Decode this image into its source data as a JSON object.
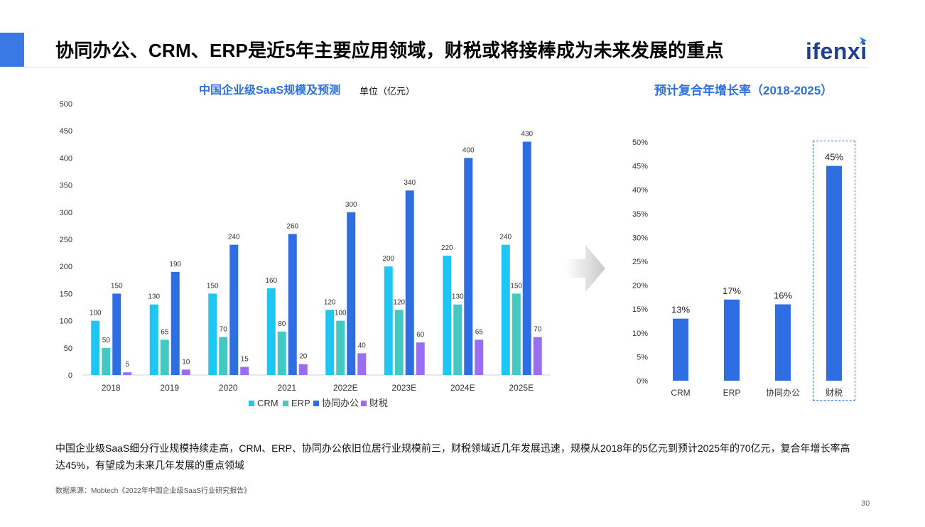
{
  "header": {
    "title": "协同办公、CRM、ERP是近5年主要应用领域，财税或将接棒成为未来发展的重点",
    "logo_text": "ifenxi"
  },
  "colors": {
    "accent": "#3a78e6",
    "title_blue": "#2e6fe0",
    "crm": "#1fc6f2",
    "erp": "#43c9c2",
    "office": "#2f6de3",
    "tax": "#9a6ef2"
  },
  "chart_data": [
    {
      "type": "bar",
      "title": "中国企业级SaaS规模及预测",
      "unit_label": "单位（亿元）",
      "categories": [
        "2018",
        "2019",
        "2020",
        "2021",
        "2022E",
        "2023E",
        "2024E",
        "2025E"
      ],
      "series": [
        {
          "name": "CRM",
          "values": [
            100,
            130,
            150,
            160,
            120,
            200,
            220,
            240
          ]
        },
        {
          "name": "ERP",
          "values": [
            50,
            65,
            70,
            80,
            100,
            120,
            130,
            150
          ]
        },
        {
          "name": "协同办公",
          "values": [
            150,
            190,
            240,
            260,
            300,
            340,
            400,
            430
          ]
        },
        {
          "name": "财税",
          "values": [
            5,
            10,
            15,
            20,
            40,
            60,
            65,
            70
          ]
        }
      ],
      "ylim": [
        0,
        500
      ],
      "yticks": [
        "0",
        "50",
        "100",
        "150",
        "200",
        "250",
        "300",
        "350",
        "400",
        "450",
        "500"
      ],
      "grid": false,
      "legend_position": "bottom"
    },
    {
      "type": "bar",
      "title": "预计复合年增长率（2018-2025）",
      "categories": [
        "CRM",
        "ERP",
        "协同办公",
        "财税"
      ],
      "values": [
        13,
        17,
        16,
        45
      ],
      "value_labels": [
        "13%",
        "17%",
        "16%",
        "45%"
      ],
      "ylim": [
        0,
        50
      ],
      "yticks": [
        "0%",
        "5%",
        "10%",
        "15%",
        "20%",
        "25%",
        "30%",
        "35%",
        "40%",
        "45%",
        "50%"
      ],
      "grid": false,
      "highlight": "财税"
    }
  ],
  "summary": "中国企业级SaaS细分行业规模持续走高，CRM、ERP、协同办公依旧位居行业规模前三，财税领域近几年发展迅速，规模从2018年的5亿元到预计2025年的70亿元，复合年增长率高达45%，有望成为未来几年发展的重点领域",
  "source": "数据来源：Mobtech《2022年中国企业级SaaS行业研究报告》",
  "page_number": "30"
}
